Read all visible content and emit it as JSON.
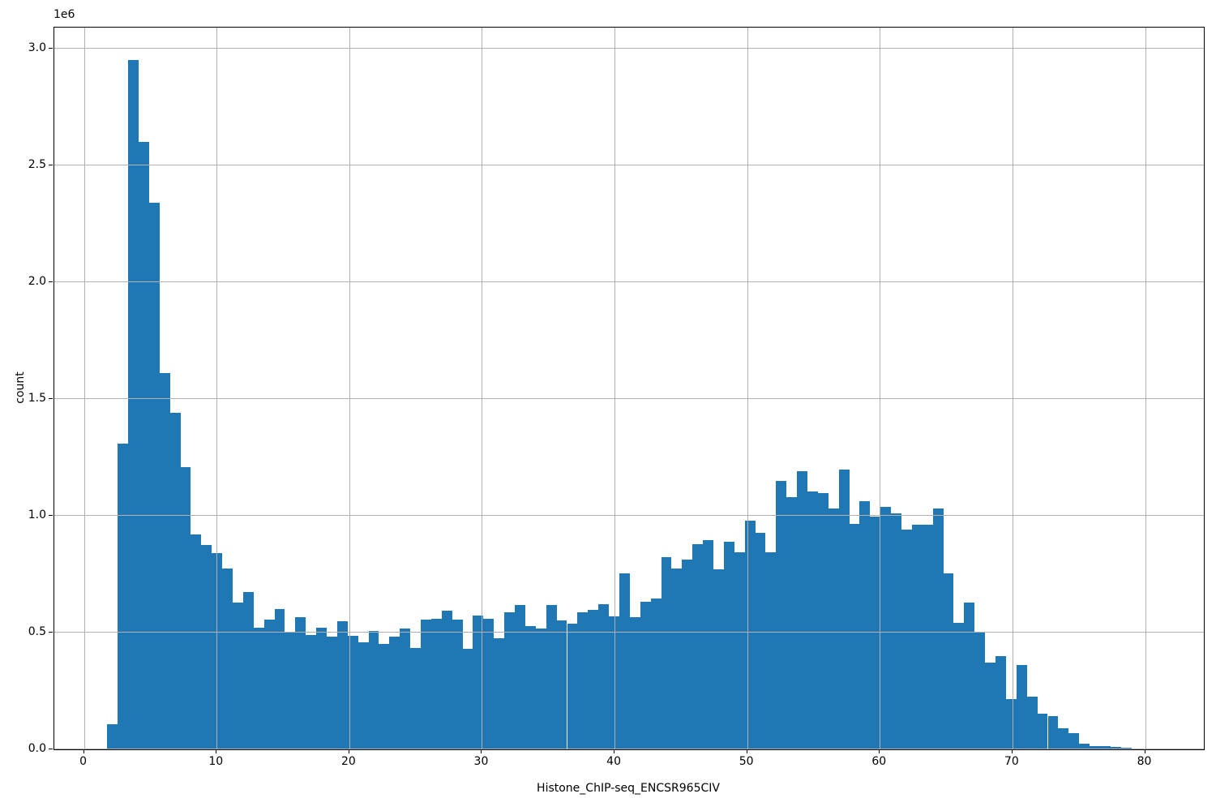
{
  "chart_data": {
    "type": "histogram",
    "title": "",
    "xlabel": "Histone_ChIP-seq_ENCSR965CIV",
    "ylabel": "count",
    "y_offset_label": "1e6",
    "grid": true,
    "legend_position": "none",
    "bar_color": "#1f77b4",
    "grid_color": "#b0b0b0",
    "spine_color": "#000000",
    "bin_start": 1.75,
    "bin_width": 0.78794,
    "xlim": [
      -2.24,
      84.43
    ],
    "ylim": [
      0,
      3090000
    ],
    "x_ticks": [
      0,
      10,
      20,
      30,
      40,
      50,
      60,
      70,
      80
    ],
    "x_tick_labels": [
      "0",
      "10",
      "20",
      "30",
      "40",
      "50",
      "60",
      "70",
      "80"
    ],
    "y_ticks": [
      0,
      500000,
      1000000,
      1500000,
      2000000,
      2500000,
      3000000
    ],
    "y_tick_labels": [
      "0.0",
      "0.5",
      "1.0",
      "1.5",
      "2.0",
      "2.5",
      "3.0"
    ],
    "values": [
      107000,
      1310000,
      2950000,
      2600000,
      2340000,
      1610000,
      1440000,
      1210000,
      920000,
      875000,
      840000,
      775000,
      630000,
      675000,
      520000,
      555000,
      600000,
      505000,
      565000,
      490000,
      520000,
      483000,
      549000,
      485000,
      459000,
      508000,
      452000,
      483000,
      517000,
      435000,
      557000,
      560000,
      593000,
      554000,
      429000,
      574000,
      560000,
      476000,
      586000,
      617000,
      528000,
      516000,
      618000,
      552000,
      538000,
      587000,
      598000,
      622000,
      571000,
      752000,
      567000,
      633000,
      645000,
      824000,
      775000,
      814000,
      880000,
      895000,
      770000,
      888000,
      845000,
      978000,
      926000,
      845000,
      1148000,
      1081000,
      1191000,
      1104000,
      1096000,
      1032000,
      1199000,
      965000,
      1064000,
      997000,
      1038000,
      1009000,
      942000,
      963000,
      963000,
      1032000,
      754000,
      543000,
      630000,
      500000,
      373000,
      398000,
      216000,
      361000,
      225000,
      152000,
      143000,
      89000,
      69000,
      25000,
      15000,
      13000,
      12000,
      8000,
      5000,
      4000
    ]
  }
}
